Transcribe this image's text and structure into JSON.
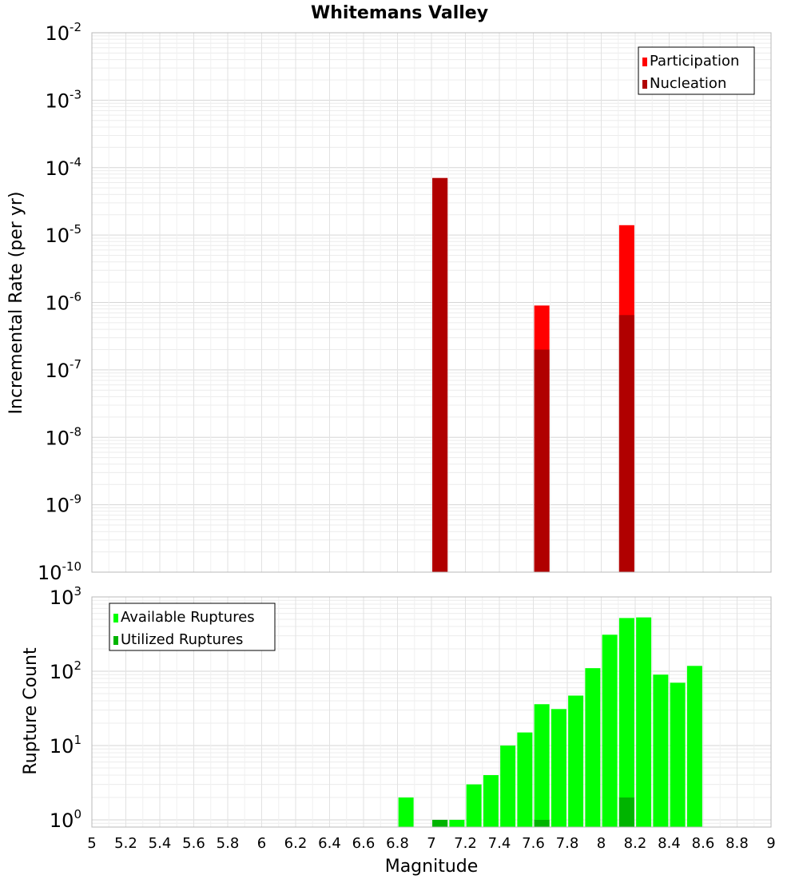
{
  "chart_data": {
    "title": "Whitemans Valley",
    "xlabel": "Magnitude",
    "x_ticks": [
      "5",
      "5.2",
      "5.4",
      "5.6",
      "5.8",
      "6",
      "6.2",
      "6.4",
      "6.6",
      "6.8",
      "7",
      "7.2",
      "7.4",
      "7.6",
      "7.8",
      "8",
      "8.2",
      "8.4",
      "8.6",
      "8.8",
      "9"
    ],
    "xlim": [
      5,
      9
    ],
    "panels": [
      {
        "type": "bar",
        "ylabel": "Incremental Rate (per yr)",
        "yscale": "log",
        "ylim": [
          1e-10,
          0.01
        ],
        "y_ticks": [
          {
            "base": "10",
            "exp": "-2"
          },
          {
            "base": "10",
            "exp": "-3"
          },
          {
            "base": "10",
            "exp": "-4"
          },
          {
            "base": "10",
            "exp": "-5"
          },
          {
            "base": "10",
            "exp": "-6"
          },
          {
            "base": "10",
            "exp": "-7"
          },
          {
            "base": "10",
            "exp": "-8"
          },
          {
            "base": "10",
            "exp": "-9"
          },
          {
            "base": "10",
            "exp": "-10"
          }
        ],
        "legend_position": "top-right",
        "series": [
          {
            "name": "Participation",
            "color": "#ff0000",
            "points": [
              {
                "x": 7.05,
                "y": 7e-05
              },
              {
                "x": 7.65,
                "y": 9e-07
              },
              {
                "x": 8.15,
                "y": 1.4e-05
              }
            ]
          },
          {
            "name": "Nucleation",
            "color": "#b00000",
            "points": [
              {
                "x": 7.05,
                "y": 7e-05
              },
              {
                "x": 7.65,
                "y": 2e-07
              },
              {
                "x": 8.15,
                "y": 6.5e-07
              }
            ]
          }
        ]
      },
      {
        "type": "bar",
        "ylabel": "Rupture Count",
        "yscale": "log",
        "ylim": [
          0.8,
          1000
        ],
        "y_ticks": [
          {
            "base": "10",
            "exp": "3"
          },
          {
            "base": "10",
            "exp": "2"
          },
          {
            "base": "10",
            "exp": "1"
          },
          {
            "base": "10",
            "exp": "0"
          }
        ],
        "legend_position": "top-left",
        "series": [
          {
            "name": "Available Ruptures",
            "color": "#00ff00",
            "points": [
              {
                "x": 6.85,
                "y": 2
              },
              {
                "x": 7.05,
                "y": 1
              },
              {
                "x": 7.15,
                "y": 1
              },
              {
                "x": 7.25,
                "y": 3
              },
              {
                "x": 7.35,
                "y": 4
              },
              {
                "x": 7.45,
                "y": 10
              },
              {
                "x": 7.55,
                "y": 15
              },
              {
                "x": 7.65,
                "y": 36
              },
              {
                "x": 7.75,
                "y": 31
              },
              {
                "x": 7.85,
                "y": 47
              },
              {
                "x": 7.95,
                "y": 110
              },
              {
                "x": 8.05,
                "y": 310
              },
              {
                "x": 8.15,
                "y": 520
              },
              {
                "x": 8.25,
                "y": 530
              },
              {
                "x": 8.35,
                "y": 90
              },
              {
                "x": 8.45,
                "y": 70
              },
              {
                "x": 8.55,
                "y": 118
              }
            ]
          },
          {
            "name": "Utilized Ruptures",
            "color": "#00b400",
            "points": [
              {
                "x": 7.05,
                "y": 1
              },
              {
                "x": 7.65,
                "y": 1
              },
              {
                "x": 8.15,
                "y": 2
              }
            ]
          }
        ]
      }
    ]
  }
}
